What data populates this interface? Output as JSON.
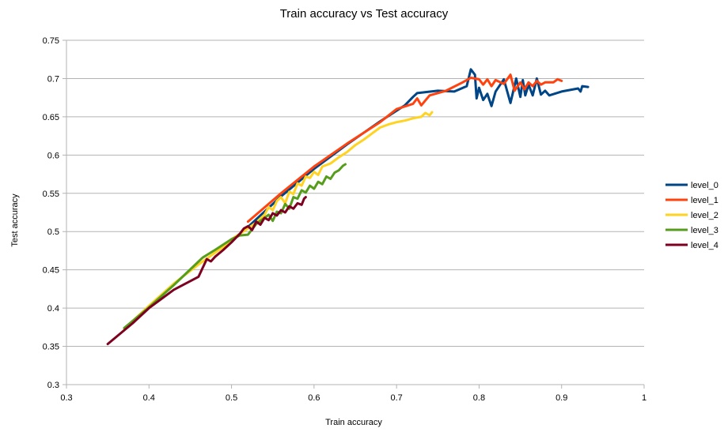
{
  "chart_data": {
    "type": "line",
    "title": "Train accuracy vs Test accuracy",
    "xlabel": "Train accuracy",
    "ylabel": "Test accuracy",
    "xlim": [
      0.3,
      1
    ],
    "ylim": [
      0.3,
      0.75
    ],
    "xticks": [
      "0.3",
      "0.4",
      "0.5",
      "0.6",
      "0.7",
      "0.8",
      "0.9",
      "1"
    ],
    "yticks": [
      "0.3",
      "0.35",
      "0.4",
      "0.45",
      "0.5",
      "0.55",
      "0.6",
      "0.65",
      "0.7",
      "0.75"
    ],
    "grid": true,
    "legend_position": "right",
    "series": [
      {
        "name": "level_0",
        "color": "#004586",
        "points": [
          [
            0.52,
            0.506
          ],
          [
            0.56,
            0.546
          ],
          [
            0.6,
            0.582
          ],
          [
            0.64,
            0.614
          ],
          [
            0.68,
            0.644
          ],
          [
            0.71,
            0.665
          ],
          [
            0.72,
            0.676
          ],
          [
            0.725,
            0.681
          ],
          [
            0.75,
            0.684
          ],
          [
            0.77,
            0.683
          ],
          [
            0.785,
            0.69
          ],
          [
            0.79,
            0.712
          ],
          [
            0.795,
            0.705
          ],
          [
            0.797,
            0.674
          ],
          [
            0.8,
            0.688
          ],
          [
            0.805,
            0.672
          ],
          [
            0.81,
            0.68
          ],
          [
            0.815,
            0.664
          ],
          [
            0.82,
            0.683
          ],
          [
            0.83,
            0.699
          ],
          [
            0.838,
            0.668
          ],
          [
            0.845,
            0.7
          ],
          [
            0.85,
            0.676
          ],
          [
            0.853,
            0.698
          ],
          [
            0.856,
            0.678
          ],
          [
            0.86,
            0.692
          ],
          [
            0.865,
            0.678
          ],
          [
            0.87,
            0.7
          ],
          [
            0.875,
            0.679
          ],
          [
            0.88,
            0.684
          ],
          [
            0.885,
            0.678
          ],
          [
            0.9,
            0.683
          ],
          [
            0.92,
            0.687
          ],
          [
            0.923,
            0.683
          ],
          [
            0.925,
            0.69
          ],
          [
            0.932,
            0.689
          ]
        ]
      },
      {
        "name": "level_1",
        "color": "#ff420e",
        "points": [
          [
            0.52,
            0.513
          ],
          [
            0.56,
            0.55
          ],
          [
            0.6,
            0.585
          ],
          [
            0.64,
            0.615
          ],
          [
            0.68,
            0.643
          ],
          [
            0.7,
            0.66
          ],
          [
            0.72,
            0.667
          ],
          [
            0.725,
            0.674
          ],
          [
            0.73,
            0.665
          ],
          [
            0.74,
            0.678
          ],
          [
            0.76,
            0.684
          ],
          [
            0.78,
            0.695
          ],
          [
            0.79,
            0.701
          ],
          [
            0.8,
            0.699
          ],
          [
            0.805,
            0.692
          ],
          [
            0.81,
            0.699
          ],
          [
            0.815,
            0.69
          ],
          [
            0.82,
            0.698
          ],
          [
            0.83,
            0.693
          ],
          [
            0.838,
            0.705
          ],
          [
            0.843,
            0.684
          ],
          [
            0.85,
            0.695
          ],
          [
            0.855,
            0.686
          ],
          [
            0.86,
            0.695
          ],
          [
            0.865,
            0.69
          ],
          [
            0.87,
            0.697
          ],
          [
            0.875,
            0.692
          ],
          [
            0.88,
            0.695
          ],
          [
            0.89,
            0.695
          ],
          [
            0.895,
            0.699
          ],
          [
            0.9,
            0.697
          ]
        ]
      },
      {
        "name": "level_2",
        "color": "#ffd320",
        "points": [
          [
            0.37,
            0.373
          ],
          [
            0.4,
            0.403
          ],
          [
            0.43,
            0.432
          ],
          [
            0.46,
            0.457
          ],
          [
            0.49,
            0.48
          ],
          [
            0.5,
            0.49
          ],
          [
            0.52,
            0.504
          ],
          [
            0.53,
            0.512
          ],
          [
            0.54,
            0.522
          ],
          [
            0.545,
            0.532
          ],
          [
            0.55,
            0.528
          ],
          [
            0.555,
            0.54
          ],
          [
            0.56,
            0.545
          ],
          [
            0.565,
            0.537
          ],
          [
            0.57,
            0.552
          ],
          [
            0.575,
            0.549
          ],
          [
            0.58,
            0.563
          ],
          [
            0.585,
            0.56
          ],
          [
            0.59,
            0.572
          ],
          [
            0.595,
            0.57
          ],
          [
            0.6,
            0.578
          ],
          [
            0.605,
            0.574
          ],
          [
            0.61,
            0.585
          ],
          [
            0.62,
            0.589
          ],
          [
            0.63,
            0.597
          ],
          [
            0.64,
            0.604
          ],
          [
            0.65,
            0.613
          ],
          [
            0.66,
            0.62
          ],
          [
            0.67,
            0.628
          ],
          [
            0.68,
            0.636
          ],
          [
            0.69,
            0.64
          ],
          [
            0.7,
            0.643
          ],
          [
            0.71,
            0.645
          ],
          [
            0.72,
            0.648
          ],
          [
            0.73,
            0.65
          ],
          [
            0.735,
            0.655
          ],
          [
            0.74,
            0.652
          ],
          [
            0.743,
            0.656
          ]
        ]
      },
      {
        "name": "level_3",
        "color": "#579d1c",
        "points": [
          [
            0.37,
            0.374
          ],
          [
            0.4,
            0.401
          ],
          [
            0.43,
            0.43
          ],
          [
            0.465,
            0.466
          ],
          [
            0.48,
            0.476
          ],
          [
            0.5,
            0.49
          ],
          [
            0.51,
            0.495
          ],
          [
            0.52,
            0.496
          ],
          [
            0.53,
            0.51
          ],
          [
            0.54,
            0.518
          ],
          [
            0.545,
            0.522
          ],
          [
            0.55,
            0.514
          ],
          [
            0.555,
            0.526
          ],
          [
            0.56,
            0.524
          ],
          [
            0.565,
            0.536
          ],
          [
            0.57,
            0.53
          ],
          [
            0.575,
            0.545
          ],
          [
            0.58,
            0.543
          ],
          [
            0.585,
            0.554
          ],
          [
            0.59,
            0.551
          ],
          [
            0.595,
            0.56
          ],
          [
            0.6,
            0.556
          ],
          [
            0.605,
            0.565
          ],
          [
            0.61,
            0.562
          ],
          [
            0.615,
            0.572
          ],
          [
            0.62,
            0.569
          ],
          [
            0.625,
            0.577
          ],
          [
            0.63,
            0.58
          ],
          [
            0.635,
            0.586
          ],
          [
            0.638,
            0.588
          ]
        ]
      },
      {
        "name": "level_4",
        "color": "#7e0021",
        "points": [
          [
            0.35,
            0.353
          ],
          [
            0.38,
            0.38
          ],
          [
            0.4,
            0.4
          ],
          [
            0.43,
            0.424
          ],
          [
            0.46,
            0.441
          ],
          [
            0.47,
            0.464
          ],
          [
            0.475,
            0.461
          ],
          [
            0.48,
            0.467
          ],
          [
            0.49,
            0.476
          ],
          [
            0.5,
            0.486
          ],
          [
            0.51,
            0.497
          ],
          [
            0.515,
            0.504
          ],
          [
            0.52,
            0.507
          ],
          [
            0.525,
            0.502
          ],
          [
            0.53,
            0.513
          ],
          [
            0.535,
            0.509
          ],
          [
            0.54,
            0.518
          ],
          [
            0.545,
            0.515
          ],
          [
            0.55,
            0.524
          ],
          [
            0.555,
            0.521
          ],
          [
            0.56,
            0.528
          ],
          [
            0.565,
            0.525
          ],
          [
            0.57,
            0.533
          ],
          [
            0.575,
            0.53
          ],
          [
            0.58,
            0.537
          ],
          [
            0.585,
            0.535
          ],
          [
            0.588,
            0.543
          ],
          [
            0.59,
            0.545
          ]
        ]
      }
    ]
  }
}
